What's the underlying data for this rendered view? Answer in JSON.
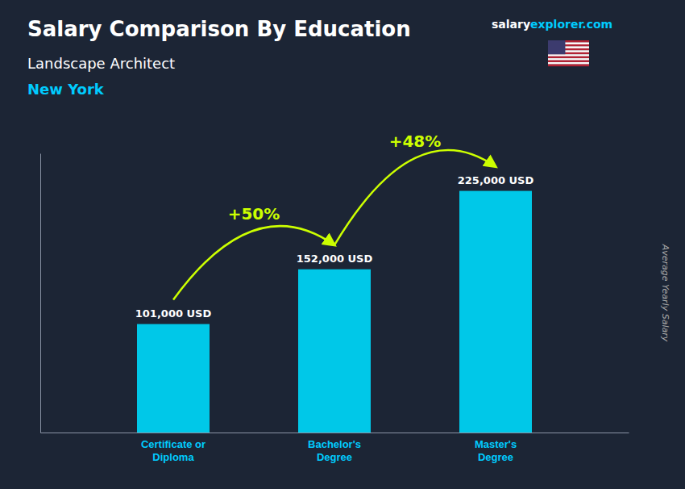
{
  "chart_data": {
    "type": "bar",
    "title": "Salary Comparison By Education",
    "subtitle": "Landscape Architect",
    "location": "New York",
    "site_name": "salary",
    "site_domain": "explorer.com",
    "ylabel": "Average Yearly Salary",
    "categories": [
      "Certificate or\nDiploma",
      "Bachelor's\nDegree",
      "Master's\nDegree"
    ],
    "values": [
      101000,
      152000,
      225000
    ],
    "value_labels": [
      "101,000 USD",
      "152,000 USD",
      "225,000 USD"
    ],
    "data_labels": true,
    "annotations": [
      "+50%",
      "+48%"
    ],
    "color": "#00c8e8",
    "ylim": [
      0,
      260000
    ],
    "yticks": [],
    "grid": false,
    "tick_labels": "x"
  }
}
